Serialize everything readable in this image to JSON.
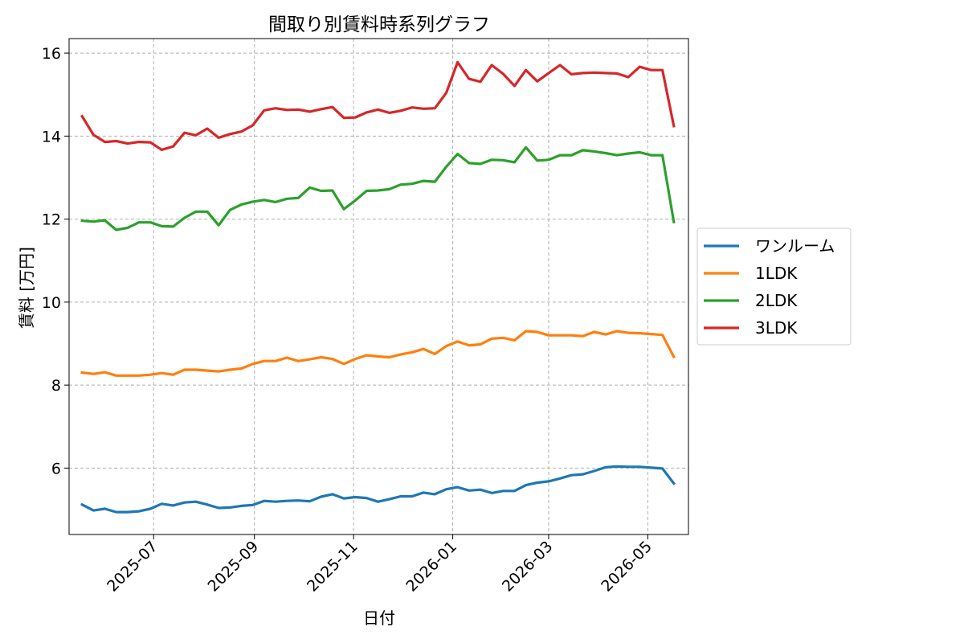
{
  "chart_data": {
    "type": "line",
    "title": "間取り別賃料時系列グラフ",
    "xlabel": "日付",
    "ylabel": "賃料 [万円]",
    "x_tick_labels": [
      "2025-07",
      "2025-09",
      "2025-11",
      "2026-01",
      "2026-03",
      "2026-05"
    ],
    "x_tick_dates": [
      "2025-07-01",
      "2025-09-01",
      "2025-11-01",
      "2026-01-01",
      "2026-03-01",
      "2026-05-01"
    ],
    "xlim": [
      "2025-05-10",
      "2026-05-26"
    ],
    "ylim": [
      4.4,
      16.35
    ],
    "y_ticks": [
      6,
      8,
      10,
      12,
      14,
      16
    ],
    "grid": true,
    "legend_position": "right",
    "x": [
      "2025-05-18",
      "2025-05-25",
      "2025-06-01",
      "2025-06-08",
      "2025-06-15",
      "2025-06-22",
      "2025-06-29",
      "2025-07-06",
      "2025-07-13",
      "2025-07-20",
      "2025-07-27",
      "2025-08-03",
      "2025-08-10",
      "2025-08-17",
      "2025-08-24",
      "2025-08-31",
      "2025-09-07",
      "2025-09-14",
      "2025-09-21",
      "2025-09-28",
      "2025-10-05",
      "2025-10-12",
      "2025-10-19",
      "2025-10-26",
      "2025-11-02",
      "2025-11-09",
      "2025-11-16",
      "2025-11-23",
      "2025-11-30",
      "2025-12-07",
      "2025-12-14",
      "2025-12-21",
      "2025-12-28",
      "2026-01-04",
      "2026-01-11",
      "2026-01-18",
      "2026-01-25",
      "2026-02-01",
      "2026-02-08",
      "2026-02-15",
      "2026-02-22",
      "2026-03-01",
      "2026-03-08",
      "2026-03-15",
      "2026-03-22",
      "2026-03-29",
      "2026-04-05",
      "2026-04-12",
      "2026-04-19",
      "2026-04-26",
      "2026-05-03",
      "2026-05-10",
      "2026-05-17"
    ],
    "series": [
      {
        "name": "ワンルーム",
        "color": "#1f77b4",
        "values": [
          5.12,
          4.98,
          5.02,
          4.94,
          4.94,
          4.96,
          5.02,
          5.14,
          5.1,
          5.17,
          5.19,
          5.12,
          5.04,
          5.05,
          5.09,
          5.11,
          5.21,
          5.19,
          5.21,
          5.22,
          5.2,
          5.31,
          5.37,
          5.27,
          5.3,
          5.28,
          5.19,
          5.25,
          5.32,
          5.32,
          5.41,
          5.37,
          5.49,
          5.54,
          5.46,
          5.48,
          5.4,
          5.45,
          5.45,
          5.59,
          5.65,
          5.68,
          5.75,
          5.83,
          5.85,
          5.93,
          6.02,
          6.04,
          6.03,
          6.03,
          6.01,
          5.99,
          5.63
        ]
      },
      {
        "name": "1LDK",
        "color": "#ff7f0e",
        "values": [
          8.3,
          8.27,
          8.31,
          8.23,
          8.23,
          8.23,
          8.25,
          8.29,
          8.25,
          8.37,
          8.37,
          8.35,
          8.33,
          8.37,
          8.4,
          8.51,
          8.58,
          8.58,
          8.66,
          8.58,
          8.62,
          8.67,
          8.63,
          8.51,
          8.63,
          8.72,
          8.69,
          8.67,
          8.74,
          8.79,
          8.87,
          8.75,
          8.94,
          9.05,
          8.96,
          8.98,
          9.12,
          9.14,
          9.08,
          9.3,
          9.28,
          9.2,
          9.2,
          9.2,
          9.18,
          9.28,
          9.22,
          9.3,
          9.26,
          9.25,
          9.23,
          9.21,
          8.68
        ]
      },
      {
        "name": "2LDK",
        "color": "#2ca02c",
        "values": [
          11.96,
          11.94,
          11.97,
          11.74,
          11.79,
          11.92,
          11.92,
          11.83,
          11.82,
          12.03,
          12.18,
          12.18,
          11.85,
          12.22,
          12.35,
          12.42,
          12.46,
          12.41,
          12.49,
          12.51,
          12.76,
          12.68,
          12.69,
          12.24,
          12.45,
          12.68,
          12.69,
          12.72,
          12.83,
          12.85,
          12.92,
          12.9,
          13.26,
          13.57,
          13.35,
          13.33,
          13.43,
          13.42,
          13.37,
          13.73,
          13.41,
          13.43,
          13.54,
          13.54,
          13.66,
          13.63,
          13.59,
          13.54,
          13.58,
          13.61,
          13.54,
          13.54,
          11.93
        ]
      },
      {
        "name": "3LDK",
        "color": "#d62728",
        "values": [
          14.48,
          14.03,
          13.86,
          13.88,
          13.82,
          13.86,
          13.85,
          13.67,
          13.75,
          14.08,
          14.02,
          14.18,
          13.96,
          14.05,
          14.11,
          14.26,
          14.62,
          14.67,
          14.63,
          14.64,
          14.59,
          14.65,
          14.7,
          14.44,
          14.45,
          14.57,
          14.64,
          14.56,
          14.61,
          14.69,
          14.66,
          14.67,
          15.04,
          15.78,
          15.38,
          15.31,
          15.71,
          15.5,
          15.21,
          15.59,
          15.32,
          15.52,
          15.71,
          15.49,
          15.52,
          15.53,
          15.52,
          15.51,
          15.42,
          15.67,
          15.59,
          15.59,
          14.24
        ]
      }
    ]
  }
}
